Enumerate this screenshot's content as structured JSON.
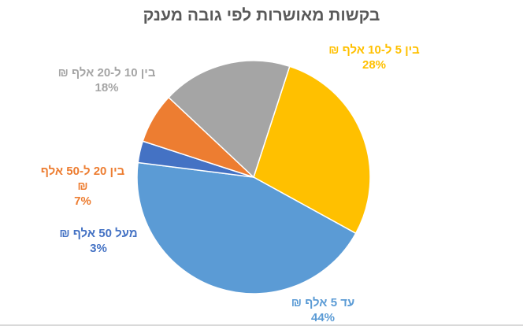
{
  "chart_data": {
    "type": "pie",
    "title": "בקשות מאושרות לפי גובה מענק",
    "slices": [
      {
        "label": "בין 5 ל-10 אלף ₪",
        "percent_label": "28%",
        "value": 28,
        "color": "#FFC000"
      },
      {
        "label": "עד 5 אלף ₪",
        "percent_label": "44%",
        "value": 44,
        "color": "#5B9BD5"
      },
      {
        "label": "מעל 50 אלף ₪",
        "percent_label": "3%",
        "value": 3,
        "color": "#4472C4"
      },
      {
        "label": "בין 20 ל-50 אלף ₪",
        "percent_label": "7%",
        "value": 7,
        "color": "#ED7D31"
      },
      {
        "label": "בין 10 ל-20 אלף ₪",
        "percent_label": "18%",
        "value": 18,
        "color": "#A5A5A5"
      }
    ]
  }
}
